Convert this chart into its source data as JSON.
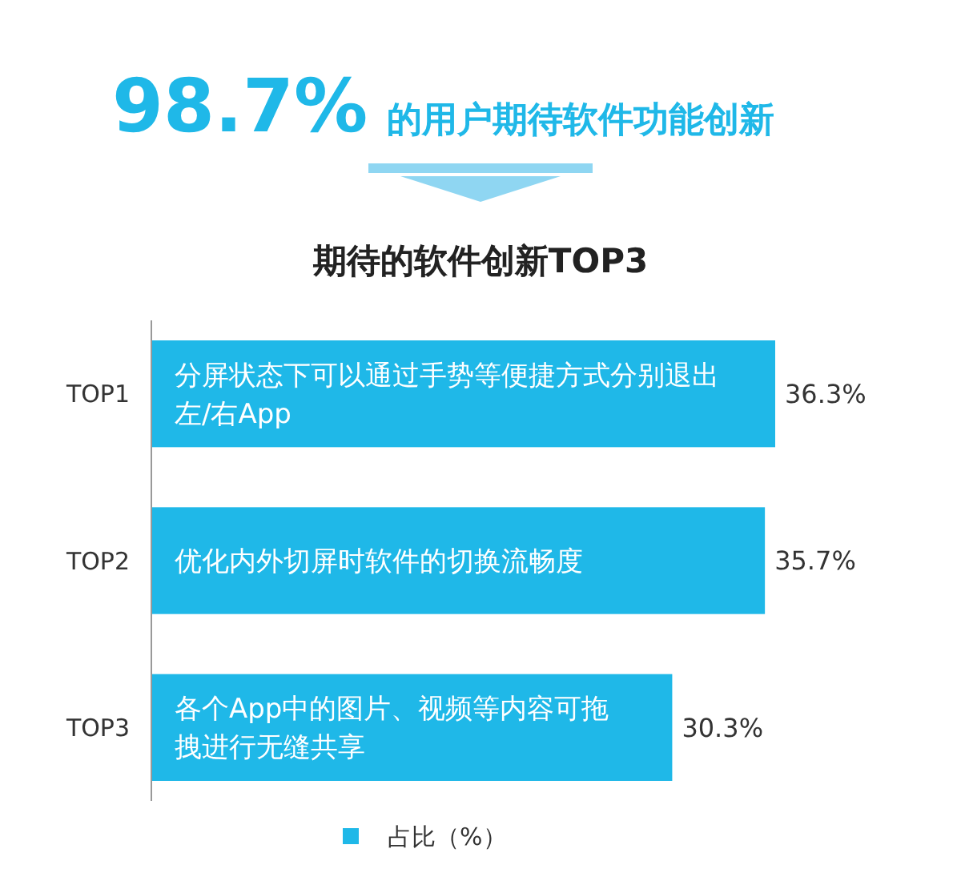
{
  "chart_data": {
    "type": "bar",
    "orientation": "horizontal",
    "title": "98.7% 的用户期待软件功能创新",
    "subtitle": "期待的软件创新TOP3",
    "categories": [
      "TOP1",
      "TOP2",
      "TOP3"
    ],
    "series": [
      {
        "name": "占比（%）",
        "color": "#1fb8e8",
        "values": [
          36.3,
          35.7,
          30.3
        ],
        "value_labels": [
          "36.3%",
          "35.7%",
          "30.3%"
        ]
      }
    ],
    "annotations": [
      "分屏状态下可以通过手势等便捷方式分别退出左/右App",
      "优化内外切屏时软件的切换流畅度",
      "各个App中的图片、视频等内容可拖拽进行无缝共享"
    ],
    "legend": "bottom"
  }
}
